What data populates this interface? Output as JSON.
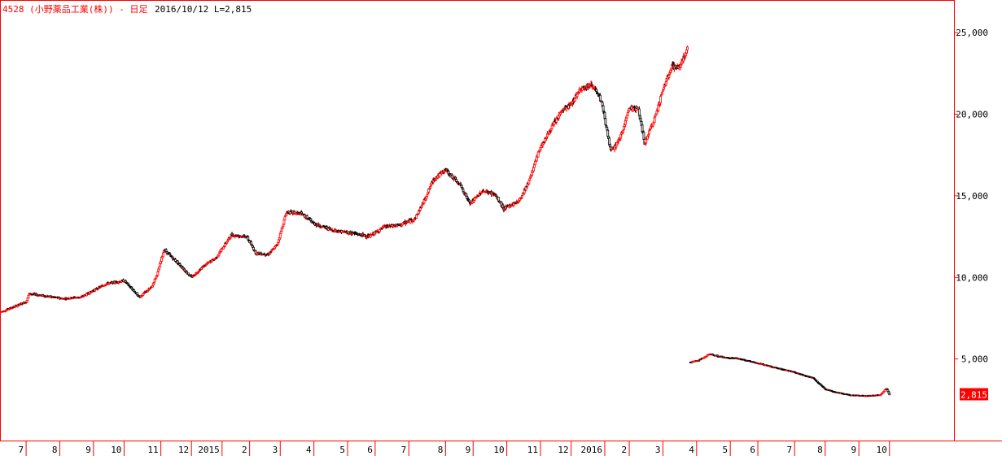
{
  "title": {
    "code_name": "4528 (小野薬品工業(株)) - 日足",
    "date_last": "2016/10/12 L=2,815"
  },
  "colors": {
    "up": "#ff0000",
    "down": "#000000",
    "frame": "#ff0000",
    "last_box": "#ff0000"
  },
  "chart_data": {
    "type": "candlestick",
    "title": "4528 (小野薬品工業(株)) - 日足",
    "subtitle": "2016/10/12 L=2,815",
    "ylabel": "",
    "xlabel": "",
    "ylim": [
      0,
      27000
    ],
    "y_ticks": [
      {
        "value": 25000,
        "label": "25,000"
      },
      {
        "value": 20000,
        "label": "20,000"
      },
      {
        "value": 15000,
        "label": "15,000"
      },
      {
        "value": 10000,
        "label": "10,000"
      },
      {
        "value": 5000,
        "label": "5,000"
      }
    ],
    "x_ticks": [
      {
        "label": "7",
        "day": 8
      },
      {
        "label": "8",
        "day": 19
      },
      {
        "label": "9",
        "day": 30
      },
      {
        "label": "10",
        "day": 40
      },
      {
        "label": "11",
        "day": 52
      },
      {
        "label": "12",
        "day": 62
      },
      {
        "label": "2015",
        "day": 72
      },
      {
        "label": "2",
        "day": 81
      },
      {
        "label": "3",
        "day": 91
      },
      {
        "label": "4",
        "day": 102
      },
      {
        "label": "5",
        "day": 113
      },
      {
        "label": "6",
        "day": 122
      },
      {
        "label": "7",
        "day": 133
      },
      {
        "label": "8",
        "day": 145
      },
      {
        "label": "9",
        "day": 154
      },
      {
        "label": "10",
        "day": 165
      },
      {
        "label": "11",
        "day": 176
      },
      {
        "label": "12",
        "day": 186
      },
      {
        "label": "2016",
        "day": 197
      },
      {
        "label": "2",
        "day": 205
      },
      {
        "label": "3",
        "day": 216
      },
      {
        "label": "4",
        "day": 227
      },
      {
        "label": "5",
        "day": 238
      },
      {
        "label": "6",
        "day": 247
      },
      {
        "label": "7",
        "day": 259
      },
      {
        "label": "8",
        "day": 269
      },
      {
        "label": "9",
        "day": 280
      },
      {
        "label": "10",
        "day": 290
      }
    ],
    "total_days": 310,
    "split": {
      "day": 225,
      "ratio": 5
    },
    "price_path": [
      [
        0,
        7900
      ],
      [
        8,
        8500
      ],
      [
        9,
        9000
      ],
      [
        20,
        8700
      ],
      [
        26,
        8800
      ],
      [
        34,
        9600
      ],
      [
        40,
        9800
      ],
      [
        45,
        8800
      ],
      [
        49,
        9400
      ],
      [
        51,
        10300
      ],
      [
        53,
        11700
      ],
      [
        58,
        10800
      ],
      [
        62,
        10000
      ],
      [
        66,
        10700
      ],
      [
        70,
        11200
      ],
      [
        75,
        12600
      ],
      [
        80,
        12500
      ],
      [
        83,
        11500
      ],
      [
        87,
        11400
      ],
      [
        90,
        12000
      ],
      [
        93,
        14000
      ],
      [
        98,
        13900
      ],
      [
        102,
        13300
      ],
      [
        108,
        12900
      ],
      [
        115,
        12700
      ],
      [
        120,
        12500
      ],
      [
        125,
        13100
      ],
      [
        130,
        13200
      ],
      [
        135,
        13600
      ],
      [
        138,
        14700
      ],
      [
        141,
        16000
      ],
      [
        145,
        16600
      ],
      [
        150,
        15600
      ],
      [
        153,
        14500
      ],
      [
        157,
        15300
      ],
      [
        161,
        15100
      ],
      [
        164,
        14200
      ],
      [
        169,
        14700
      ],
      [
        172,
        15800
      ],
      [
        176,
        18000
      ],
      [
        180,
        19300
      ],
      [
        183,
        20200
      ],
      [
        186,
        20600
      ],
      [
        189,
        21600
      ],
      [
        193,
        21800
      ],
      [
        196,
        20700
      ],
      [
        199,
        17700
      ],
      [
        202,
        18500
      ],
      [
        205,
        20400
      ],
      [
        208,
        20300
      ],
      [
        210,
        18200
      ],
      [
        213,
        19600
      ],
      [
        216,
        21500
      ],
      [
        219,
        23000
      ],
      [
        221,
        22800
      ],
      [
        224,
        24000
      ],
      [
        225,
        4800
      ],
      [
        228,
        4950
      ],
      [
        231,
        5300
      ],
      [
        236,
        5100
      ],
      [
        240,
        5050
      ],
      [
        245,
        4850
      ],
      [
        252,
        4500
      ],
      [
        258,
        4250
      ],
      [
        262,
        4000
      ],
      [
        265,
        3850
      ],
      [
        269,
        3150
      ],
      [
        272,
        3000
      ],
      [
        277,
        2800
      ],
      [
        282,
        2750
      ],
      [
        287,
        2800
      ],
      [
        289,
        3200
      ],
      [
        290,
        2815
      ]
    ],
    "gaps": [
      [
        225,
        226
      ]
    ],
    "last_value": 2815,
    "last_label": "2,815"
  }
}
